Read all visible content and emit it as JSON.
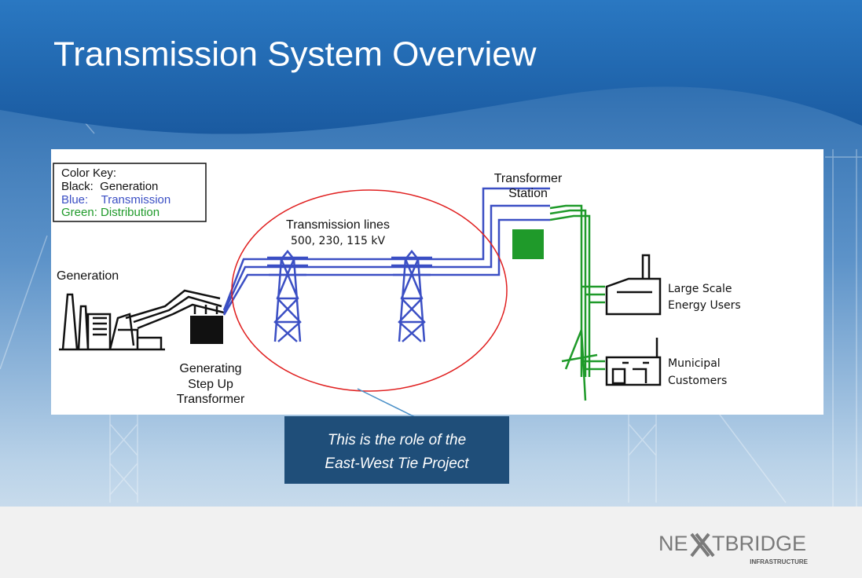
{
  "header": {
    "title": "Transmission System Overview"
  },
  "color_key": {
    "heading": "Color Key:",
    "lines": [
      "Black:  Generation",
      "Blue:    Transmission",
      "Green: Distribution"
    ]
  },
  "labels": {
    "generation": "Generation",
    "step_up": [
      "Generating",
      "Step Up",
      "Transformer"
    ],
    "transmission_lines": "Transmission lines",
    "voltages": "500, 230, 115 kV",
    "station": [
      "Transformer",
      "Station"
    ],
    "large_users": [
      "Large Scale",
      "Energy Users"
    ],
    "municipal": [
      "Municipal",
      "Customers"
    ]
  },
  "callout": [
    "This is the role of the",
    "East-West Tie Project"
  ],
  "logo": {
    "left": "NE",
    "right": "TBRIDGE",
    "tagline": "INFRASTRUCTURE"
  }
}
